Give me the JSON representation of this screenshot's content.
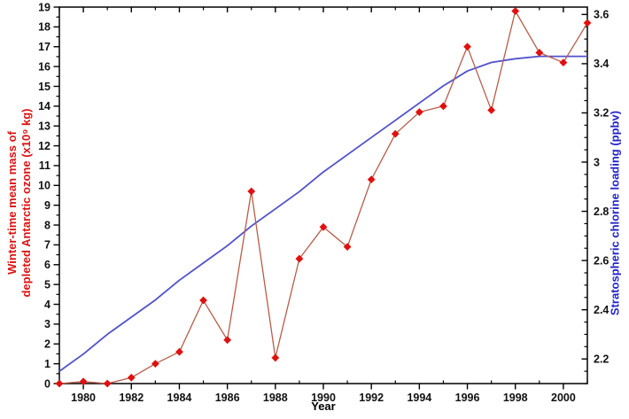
{
  "figure": {
    "background": "#ffffff",
    "axis_color": "#000000",
    "tick_label_color": "#111111"
  },
  "chart_data": {
    "type": "line",
    "title": "",
    "xlabel": "Year",
    "grid": false,
    "legend": "none",
    "x_range": [
      1979,
      2001
    ],
    "x_ticks": {
      "values": [
        1980,
        1982,
        1984,
        1986,
        1988,
        1990,
        1992,
        1994,
        1996,
        1998,
        2000
      ],
      "labels": [
        "1980",
        "1982",
        "1984",
        "1986",
        "1988",
        "1990",
        "1992",
        "1994",
        "1996",
        "1998",
        "2000"
      ],
      "minor_step": 1
    },
    "left_axis": {
      "label_line1": "Winter-time mean mass of",
      "label_line2": "depleted Antarctic ozone (x10⁹ kg)",
      "color": "#dd1111",
      "range": [
        0,
        19
      ],
      "tick_values": [
        0,
        1,
        2,
        3,
        4,
        5,
        6,
        7,
        8,
        9,
        10,
        11,
        12,
        13,
        14,
        15,
        16,
        17,
        18,
        19
      ],
      "tick_labels": [
        "0",
        "1",
        "2",
        "3",
        "4",
        "5",
        "6",
        "7",
        "8",
        "9",
        "10",
        "11",
        "12",
        "13",
        "14",
        "15",
        "16",
        "17",
        "18",
        "19"
      ],
      "minor_step": 0.5
    },
    "right_axis": {
      "label": "Stratospheric chlorine loading (ppbv)",
      "color": "#2222cc",
      "range": [
        2.1,
        3.63
      ],
      "tick_values": [
        2.2,
        2.4,
        2.6,
        2.8,
        3.0,
        3.2,
        3.4,
        3.6
      ],
      "tick_labels": [
        "2.2",
        "2.4",
        "2.6",
        "2.8",
        "3",
        "3.2",
        "3.4",
        "3.6"
      ],
      "minor_step": 0.05
    },
    "series": [
      {
        "name": "stratospheric-chlorine-loading",
        "axis": "right",
        "style": "smooth-line",
        "line_color": "#5151cc",
        "line_width": 1.8,
        "x": [
          1979,
          1980,
          1981,
          1982,
          1983,
          1984,
          1985,
          1986,
          1987,
          1988,
          1989,
          1990,
          1991,
          1992,
          1993,
          1994,
          1995,
          1996,
          1997,
          1998,
          1999,
          2000,
          2001
        ],
        "values": [
          2.15,
          2.22,
          2.3,
          2.37,
          2.44,
          2.52,
          2.59,
          2.66,
          2.74,
          2.81,
          2.88,
          2.96,
          3.03,
          3.1,
          3.17,
          3.24,
          3.31,
          3.37,
          3.405,
          3.42,
          3.43,
          3.43,
          3.43
        ]
      },
      {
        "name": "depleted-ozone-mass",
        "axis": "left",
        "style": "line-with-markers",
        "line_color": "#b85c4a",
        "line_width": 1.3,
        "marker": "diamond",
        "marker_color": "#e01010",
        "marker_size": 4.4,
        "x": [
          1979,
          1980,
          1981,
          1982,
          1983,
          1984,
          1985,
          1986,
          1987,
          1988,
          1989,
          1990,
          1991,
          1992,
          1993,
          1994,
          1995,
          1996,
          1997,
          1998,
          1999,
          2000,
          2001
        ],
        "values": [
          0.0,
          0.1,
          0.0,
          0.3,
          1.0,
          1.6,
          4.2,
          2.2,
          9.7,
          1.3,
          6.3,
          7.9,
          6.9,
          10.3,
          12.6,
          13.7,
          14.0,
          17.0,
          13.8,
          18.8,
          16.7,
          16.2,
          18.2
        ]
      }
    ]
  }
}
